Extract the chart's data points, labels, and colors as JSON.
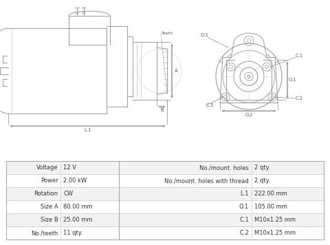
{
  "bg_color": "#ffffff",
  "line_color": "#999999",
  "text_color": "#555555",
  "table_rows": [
    [
      "Voltage",
      "12 V",
      "No./mount. holes",
      "2 qty."
    ],
    [
      "Power",
      "2.00 kW",
      "No./mount. holes with thread",
      "2 qty."
    ],
    [
      "Rotation",
      "CW",
      "L.1",
      "222.00 mm"
    ],
    [
      "Size A",
      "80.00 mm",
      "O.1",
      "105.00 mm"
    ],
    [
      "Size B",
      "25.00 mm",
      "C.1",
      "M10x1.25 mm"
    ],
    [
      "No./teeth",
      "11 qty.",
      "C.2",
      "M10x1.25 mm"
    ]
  ]
}
